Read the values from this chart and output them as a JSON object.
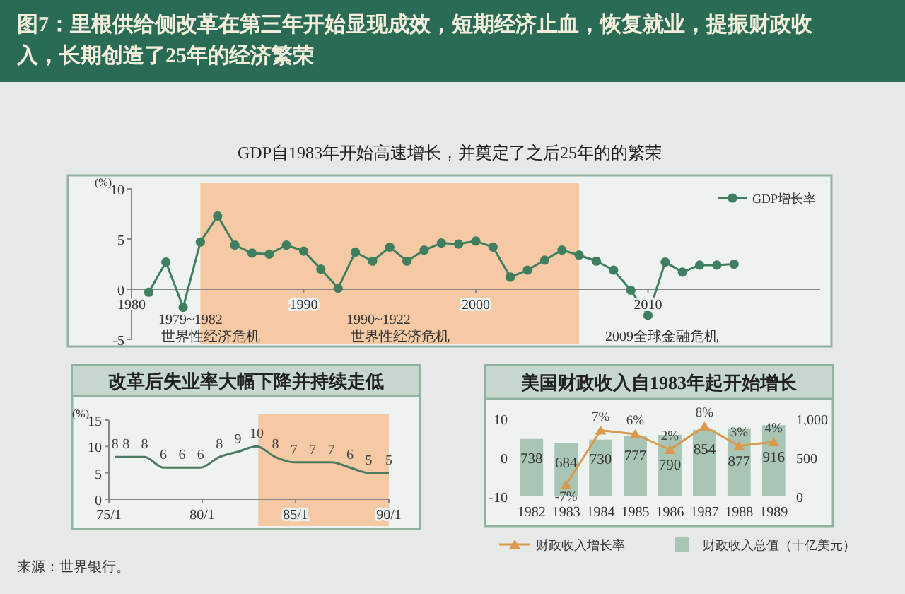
{
  "chart_data": [
    {
      "type": "other",
      "title": "图7：里根供给侧改革在第三年开始显现成效，短期经济止血，恢复就业，提振财政收入，长期创造了25年的经济繁荣",
      "annotations": [
        "来源：世界银行。"
      ]
    },
    {
      "type": "line",
      "title": "GDP自1983年开始高速增长，并奠定了之后25年的的繁荣",
      "ylabel": "(%)",
      "x": [
        1981,
        1982,
        1983,
        1984,
        1985,
        1986,
        1987,
        1988,
        1989,
        1990,
        1991,
        1992,
        1993,
        1994,
        1995,
        1996,
        1997,
        1998,
        1999,
        2000,
        2001,
        2002,
        2003,
        2004,
        2005,
        2006,
        2007,
        2008,
        2009,
        2010,
        2011,
        2012,
        2013,
        2014,
        2015
      ],
      "series": [
        {
          "name": "GDP增长率",
          "color": "#3f7f5f",
          "values": [
            -0.3,
            2.7,
            -1.8,
            4.7,
            7.3,
            4.4,
            3.6,
            3.5,
            4.4,
            3.8,
            2.0,
            0.1,
            3.7,
            2.8,
            4.2,
            2.8,
            3.9,
            4.6,
            4.5,
            4.8,
            4.2,
            1.2,
            1.9,
            2.9,
            3.9,
            3.4,
            2.8,
            1.9,
            -0.1,
            -2.6,
            2.7,
            1.7,
            2.4,
            2.4,
            2.5
          ]
        }
      ],
      "xlim": [
        1980,
        2020
      ],
      "xticks": [
        1980,
        1990,
        2000,
        2010
      ],
      "ylim": [
        -5,
        10
      ],
      "yticks": [
        10,
        5,
        0,
        -5
      ],
      "marker": "circle",
      "legend": "top right",
      "bands": [
        {
          "axis": "x",
          "from": 1984,
          "to": 2006,
          "color": "#f5c9a3"
        }
      ],
      "annotations": [
        "1979~1982\n世界性经济危机",
        "1990~1922\n世界性经济危机",
        "2009全球金融危机"
      ]
    },
    {
      "type": "line",
      "title": "改革后失业率大幅下降并持续走低",
      "ylabel": "(%)",
      "x": [
        "1975-05",
        "1975-12",
        "1976-12",
        "1977-12",
        "1978-12",
        "1979-12",
        "1980-12",
        "1981-12",
        "1982-12",
        "1983-12",
        "1984-12",
        "1985-12",
        "1986-12",
        "1987-12",
        "1988-12",
        "1990-01"
      ],
      "series": [
        {
          "color": "#4d7a62",
          "values": [
            8,
            8,
            8,
            6,
            6,
            6,
            8,
            9,
            10,
            8,
            7,
            7,
            7,
            6,
            5,
            5
          ]
        }
      ],
      "data_labels": true,
      "xlim": [
        "1975-01",
        "1990-01"
      ],
      "xticks": [
        {
          "value": "1975-01",
          "label": "75/1"
        },
        {
          "value": "1980-01",
          "label": "80/1"
        },
        {
          "value": "1985-01",
          "label": "85/1"
        },
        {
          "value": "1990-01",
          "label": "90/1"
        }
      ],
      "ylim": [
        0,
        15
      ],
      "yticks": [
        0,
        5,
        10,
        15
      ],
      "bands": [
        {
          "axis": "x",
          "from": "1983-01",
          "to": "1990-01",
          "color": "#f5c9a3"
        }
      ]
    },
    {
      "type": "bar",
      "title": "美国财政收入自1983年起开始增长",
      "categories": [
        "1982",
        "1983",
        "1984",
        "1985",
        "1986",
        "1987",
        "1988",
        "1989"
      ],
      "series": [
        {
          "name": "财政收入总值（十亿美元）",
          "type": "bar",
          "axis": "y2",
          "color": "#a9c5b5",
          "values": [
            738,
            684,
            730,
            777,
            790,
            854,
            877,
            916
          ],
          "value_labels": [
            "738",
            "684",
            "730",
            "777",
            "790",
            "854",
            "877",
            "916"
          ]
        },
        {
          "name": "财政收入增长率",
          "type": "line",
          "color": "#d99a4e",
          "values": [
            null,
            -7,
            7,
            6,
            2,
            8,
            3,
            4
          ],
          "value_labels": [
            null,
            "-7%",
            "7%",
            "6%",
            "2%",
            "8%",
            "3%",
            "4%"
          ]
        }
      ],
      "ylim": [
        -10,
        10
      ],
      "yticks": [
        10,
        0,
        -10
      ],
      "y2lim": [
        0,
        1000
      ],
      "y2ticks": [
        {
          "value": 1000,
          "label": "1,000"
        },
        500,
        0
      ],
      "marker": "triangle",
      "legend": "bottom"
    }
  ]
}
